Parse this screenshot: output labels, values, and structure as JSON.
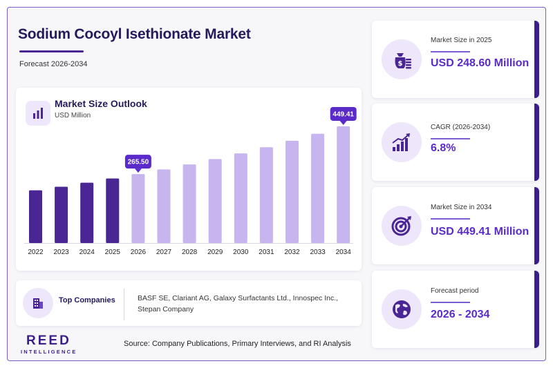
{
  "header": {
    "title": "Sodium Cocoyl Isethionate Market",
    "subtitle": "Forecast 2026-2034"
  },
  "chart_card": {
    "title": "Market Size Outlook",
    "unit": "USD Million",
    "icon": "bar-chart-icon"
  },
  "chart_data": {
    "type": "bar",
    "title": "Market Size Outlook",
    "ylabel": "USD Million",
    "categories": [
      "2022",
      "2023",
      "2024",
      "2025",
      "2026",
      "2027",
      "2028",
      "2029",
      "2030",
      "2031",
      "2032",
      "2033",
      "2034"
    ],
    "values": [
      203.0,
      216.8,
      232.2,
      248.6,
      265.5,
      283.5,
      302.8,
      323.4,
      345.4,
      368.9,
      393.9,
      420.7,
      449.41
    ],
    "ylim": [
      0,
      460
    ],
    "historical_color": "#4a2594",
    "forecast_color": "#c7b5f0",
    "historical_through": "2025",
    "callouts": [
      {
        "category": "2026",
        "label": "265.50"
      },
      {
        "category": "2034",
        "label": "449.41"
      }
    ],
    "callout_color": "#5a2bc9",
    "grid": false,
    "legend": "none"
  },
  "companies": {
    "label": "Top Companies",
    "icon": "building-icon",
    "list": "BASF SE, Clariant AG, Galaxy Surfactants Ltd., Innospec Inc., Stepan Company"
  },
  "kpis": [
    {
      "label": "Market Size in 2025",
      "value": "USD 248.60 Million",
      "icon": "money-bag-icon"
    },
    {
      "label": "CAGR (2026-2034)",
      "value": "6.8%",
      "icon": "growth-chart-icon"
    },
    {
      "label": "Market Size in 2034",
      "value": "USD 449.41 Million",
      "icon": "target-icon"
    },
    {
      "label": "Forecast period",
      "value": "2026 - 2034",
      "icon": "globe-icon"
    }
  ],
  "footer": {
    "logo_main": "REED",
    "logo_sub": "INTELLIGENCE",
    "source": "Source: Company Publications, Primary Interviews, and RI Analysis"
  },
  "colors": {
    "accent": "#5a2bc9",
    "dark": "#241a5c",
    "brand": "#3b1e8c",
    "icon_bg": "#eee6fb"
  }
}
